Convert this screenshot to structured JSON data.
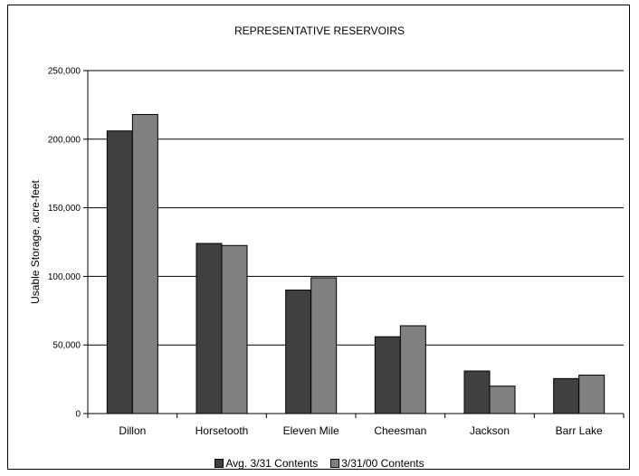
{
  "chart_data": {
    "type": "bar",
    "title": "REPRESENTATIVE RESERVOIRS",
    "ylabel": "Usable Storage, acre-feet",
    "xlabel": "",
    "ylim": [
      0,
      250000
    ],
    "yticks": [
      "0",
      "50,000",
      "100,000",
      "150,000",
      "200,000",
      "250,000"
    ],
    "ytick_values": [
      0,
      50000,
      100000,
      150000,
      200000,
      250000
    ],
    "grid": true,
    "legend_position": "bottom",
    "categories": [
      "Dillon",
      "Horsetooth",
      "Eleven Mile",
      "Cheesman",
      "Jackson",
      "Barr Lake"
    ],
    "series": [
      {
        "name": "Avg. 3/31 Contents",
        "color": "#404040",
        "values": [
          206000,
          124000,
          90000,
          56000,
          31000,
          25500
        ]
      },
      {
        "name": "3/31/00 Contents",
        "color": "#808080",
        "values": [
          218000,
          122500,
          99000,
          64000,
          20000,
          28000
        ]
      }
    ]
  }
}
